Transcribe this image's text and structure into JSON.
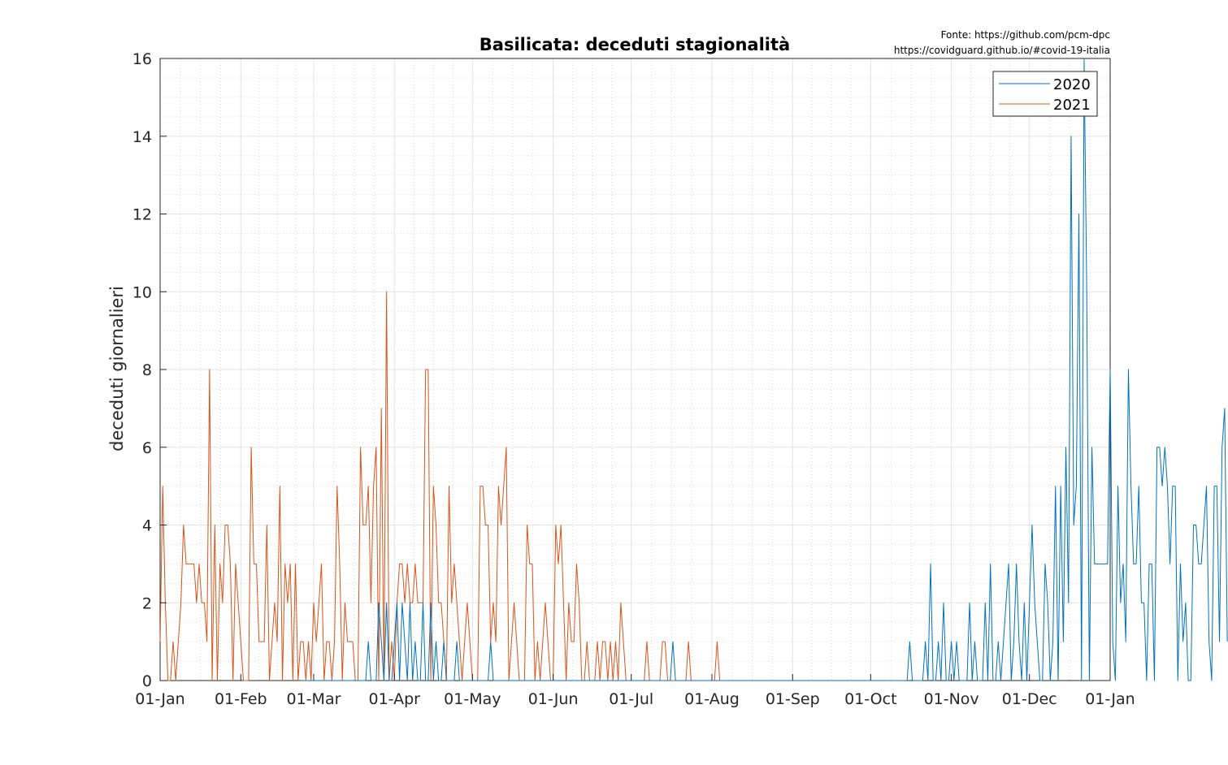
{
  "chart_data": {
    "type": "line",
    "title": "Basilicata: deceduti stagionalità",
    "source_lines": [
      "Fonte: https://github.com/pcm-dpc",
      "https://covidguard.github.io/#covid-19-italia"
    ],
    "xlabel": "",
    "ylabel": "deceduti giornalieri",
    "x_ticks": [
      "01-Jan",
      "01-Feb",
      "01-Mar",
      "01-Apr",
      "01-May",
      "01-Jun",
      "01-Jul",
      "01-Aug",
      "01-Sep",
      "01-Oct",
      "01-Nov",
      "01-Dec",
      "01-Jan"
    ],
    "y_ticks": [
      "0",
      "2",
      "4",
      "6",
      "8",
      "10",
      "12",
      "14",
      "16"
    ],
    "xlim": [
      "01-Jan",
      "01-Jan"
    ],
    "ylim": [
      0,
      16
    ],
    "grid": true,
    "legend_position": "top-right",
    "colors": {
      "2020": "#0072bd",
      "2021": "#d95319"
    },
    "series": [
      {
        "name": "2020",
        "start_date": "2020-02-24",
        "values": [
          0,
          0,
          0,
          0,
          0,
          0,
          0,
          0,
          0,
          0,
          0,
          0,
          0,
          0,
          0,
          0,
          0,
          0,
          0,
          0,
          0,
          0,
          0,
          0,
          0,
          0,
          1,
          0,
          0,
          0,
          2,
          1,
          0,
          2,
          0,
          0,
          1,
          2,
          0,
          2,
          1,
          0,
          2,
          0,
          1,
          0,
          0,
          2,
          0,
          0,
          2,
          0,
          1,
          0,
          0,
          1,
          0,
          0,
          0,
          0,
          1,
          0,
          0,
          0,
          0,
          0,
          0,
          0,
          0,
          0,
          0,
          0,
          0,
          1,
          0,
          0,
          0,
          0,
          0,
          0,
          0,
          0,
          0,
          0,
          0,
          0,
          0,
          0,
          0,
          0,
          0,
          0,
          0,
          0,
          0,
          0,
          0,
          0,
          0,
          0,
          0,
          0,
          0,
          0,
          0,
          0,
          0,
          0,
          0,
          0,
          0,
          0,
          0,
          0,
          0,
          0,
          0,
          0,
          0,
          0,
          0,
          0,
          0,
          0,
          0,
          0,
          0,
          0,
          0,
          0,
          0,
          0,
          0,
          0,
          0,
          0,
          0,
          0,
          0,
          0,
          0,
          0,
          0,
          1,
          0,
          0,
          0,
          0,
          0,
          0,
          0,
          0,
          0,
          0,
          0,
          0,
          0,
          0,
          0,
          0,
          0,
          0,
          0,
          0,
          0,
          0,
          0,
          0,
          0,
          0,
          0,
          0,
          0,
          0,
          0,
          0,
          0,
          0,
          0,
          0,
          0,
          0,
          0,
          0,
          0,
          0,
          0,
          0,
          0,
          0,
          0,
          0,
          0,
          0,
          0,
          0,
          0,
          0,
          0,
          0,
          0,
          0,
          0,
          0,
          0,
          0,
          0,
          0,
          0,
          0,
          0,
          0,
          0,
          0,
          0,
          0,
          0,
          0,
          0,
          0,
          0,
          0,
          0,
          0,
          0,
          0,
          0,
          0,
          0,
          0,
          0,
          0,
          0,
          0,
          1,
          0,
          0,
          0,
          0,
          0,
          1,
          0,
          3,
          0,
          0,
          1,
          0,
          2,
          0,
          0,
          1,
          0,
          1,
          0,
          0,
          0,
          0,
          2,
          0,
          1,
          0,
          0,
          0,
          2,
          0,
          3,
          0,
          0,
          1,
          0,
          1,
          2,
          3,
          0,
          1,
          3,
          1,
          0,
          2,
          0,
          2,
          4,
          2,
          1,
          0,
          0,
          3,
          2,
          0,
          1,
          5,
          0,
          5,
          1,
          6,
          2,
          14,
          4,
          5,
          12,
          0,
          16,
          10,
          0,
          6,
          3,
          3,
          3,
          3,
          3,
          3,
          8,
          1,
          0,
          5,
          2,
          3,
          1,
          8,
          5,
          3,
          3,
          5,
          2,
          2,
          0,
          3,
          3,
          0,
          6,
          6,
          5,
          6,
          5,
          3,
          5,
          5,
          0,
          3,
          1,
          2,
          0,
          0,
          4,
          4,
          3,
          3,
          4,
          5,
          1,
          0,
          5,
          5,
          1,
          6,
          7,
          1
        ]
      },
      {
        "name": "2021",
        "start_date": "2021-01-01",
        "values": [
          1,
          5,
          2,
          0,
          0,
          1,
          0,
          1,
          2,
          4,
          3,
          3,
          3,
          3,
          2,
          3,
          2,
          2,
          1,
          8,
          0,
          4,
          0,
          3,
          2,
          4,
          4,
          3,
          0,
          3,
          2,
          1,
          0,
          0,
          0,
          6,
          3,
          3,
          1,
          1,
          1,
          4,
          0,
          1,
          2,
          1,
          5,
          0,
          3,
          2,
          3,
          0,
          3,
          0,
          1,
          1,
          0,
          1,
          0,
          2,
          1,
          2,
          3,
          0,
          1,
          1,
          0,
          1,
          5,
          3,
          0,
          2,
          1,
          1,
          1,
          0,
          0,
          6,
          4,
          4,
          5,
          2,
          5,
          6,
          0,
          7,
          0,
          10,
          0,
          1,
          0,
          2,
          3,
          3,
          2,
          3,
          2,
          2,
          3,
          2,
          2,
          2,
          8,
          8,
          0,
          5,
          4,
          2,
          2,
          1,
          0,
          5,
          2,
          3,
          2,
          1,
          0,
          1,
          2,
          1,
          0,
          0,
          0,
          5,
          5,
          4,
          4,
          1,
          2,
          1,
          5,
          4,
          5,
          6,
          0,
          1,
          2,
          1,
          0,
          0,
          0,
          4,
          3,
          3,
          0,
          1,
          0,
          1,
          2,
          1,
          0,
          0,
          4,
          3,
          4,
          2,
          0,
          2,
          1,
          1,
          3,
          2,
          0,
          0,
          1,
          0,
          0,
          0,
          1,
          0,
          1,
          1,
          0,
          1,
          0,
          1,
          0,
          2,
          1,
          0,
          0,
          0,
          0,
          0,
          0,
          0,
          0,
          1,
          0,
          0,
          0,
          0,
          0,
          1,
          1,
          0,
          0,
          0,
          0,
          0,
          0,
          0,
          0,
          1,
          0,
          0,
          0,
          0,
          0,
          0,
          0,
          0,
          0,
          0,
          1,
          0,
          0
        ]
      }
    ]
  }
}
